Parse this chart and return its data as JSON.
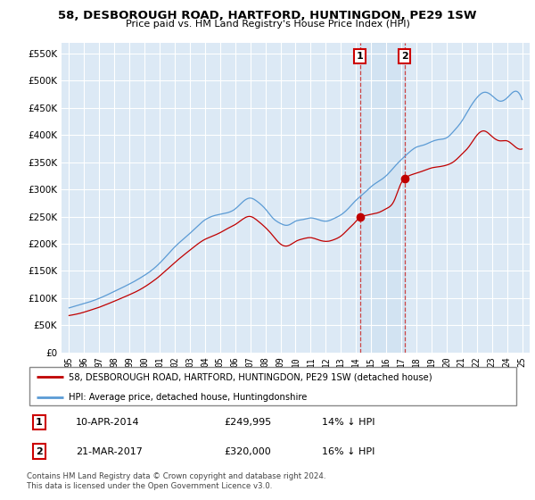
{
  "title": "58, DESBOROUGH ROAD, HARTFORD, HUNTINGDON, PE29 1SW",
  "subtitle": "Price paid vs. HM Land Registry's House Price Index (HPI)",
  "hpi_label": "HPI: Average price, detached house, Huntingdonshire",
  "property_label": "58, DESBOROUGH ROAD, HARTFORD, HUNTINGDON, PE29 1SW (detached house)",
  "annotation1": {
    "num": "1",
    "date": "10-APR-2014",
    "price": "£249,995",
    "pct": "14% ↓ HPI"
  },
  "annotation2": {
    "num": "2",
    "date": "21-MAR-2017",
    "price": "£320,000",
    "pct": "16% ↓ HPI"
  },
  "footnote": "Contains HM Land Registry data © Crown copyright and database right 2024.\nThis data is licensed under the Open Government Licence v3.0.",
  "hpi_color": "#5b9bd5",
  "property_color": "#c00000",
  "marker1_x": 2014.27,
  "marker2_x": 2017.22,
  "marker1_y": 249995,
  "marker2_y": 320000,
  "ylim": [
    0,
    570000
  ],
  "xlim_left": 1994.5,
  "xlim_right": 2025.5,
  "chart_bg": "#dce9f5"
}
